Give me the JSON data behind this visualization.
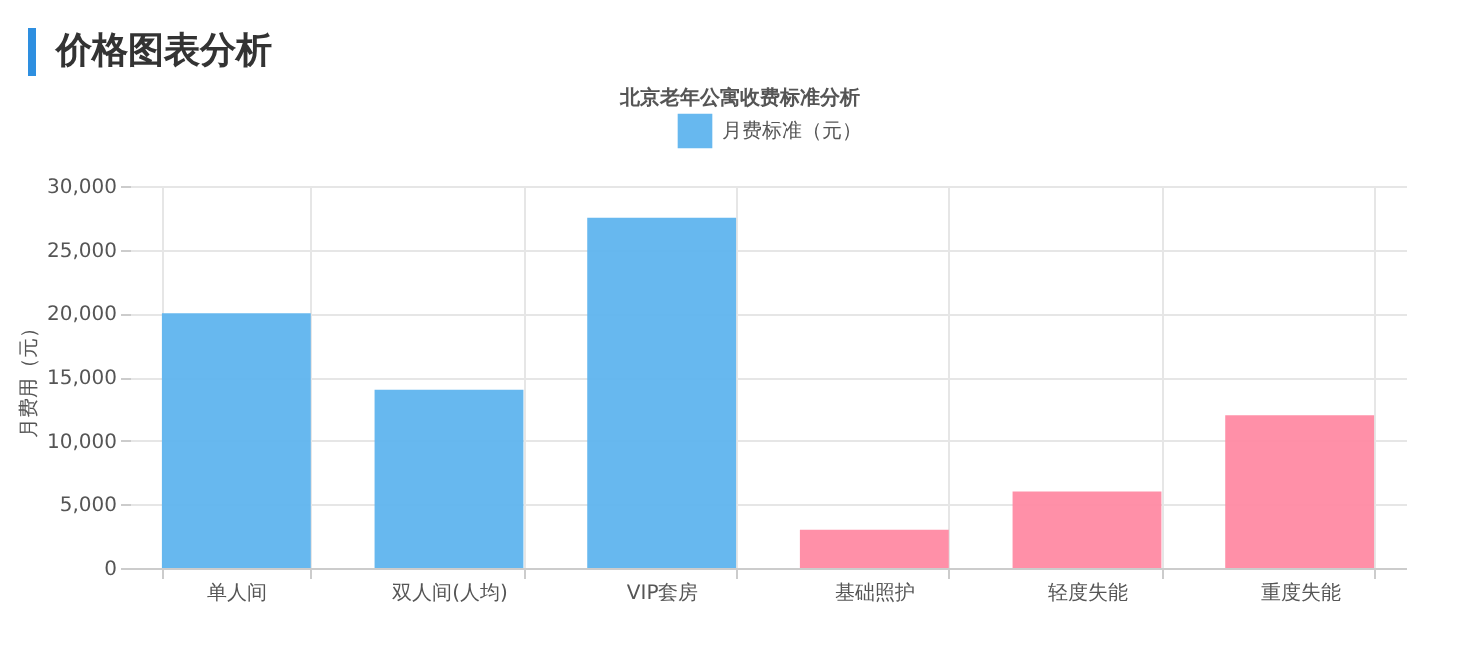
{
  "chart_data": {
    "type": "bar",
    "title": "价格图表分析",
    "subtitle": "北京老年公寓收费标准分析",
    "ylabel": "月费用（元）",
    "categories": [
      "单人间",
      "双人间(人均)",
      "VIP套房",
      "基础照护",
      "轻度失能",
      "重度失能"
    ],
    "series": [
      {
        "name": "月费标准（元）",
        "color": "#5fb4ee",
        "colors": [
          "#5fb4ee",
          "#5fb4ee",
          "#5fb4ee",
          "#ff8aa3",
          "#ff8aa3",
          "#ff8aa3"
        ],
        "values": [
          20000,
          14000,
          27500,
          3000,
          6000,
          12000
        ]
      }
    ],
    "ylim": [
      0,
      30000
    ],
    "yticks": [
      0,
      {
        "value": 5000,
        "label": "5,000"
      },
      {
        "value": 10000,
        "label": "10,000"
      },
      {
        "value": 15000,
        "label": "15,000"
      },
      {
        "value": 20000,
        "label": "20,000"
      },
      {
        "value": 25000,
        "label": "25,000"
      },
      {
        "value": 30000,
        "label": "30,000"
      }
    ],
    "grid": true,
    "legend": "top"
  }
}
